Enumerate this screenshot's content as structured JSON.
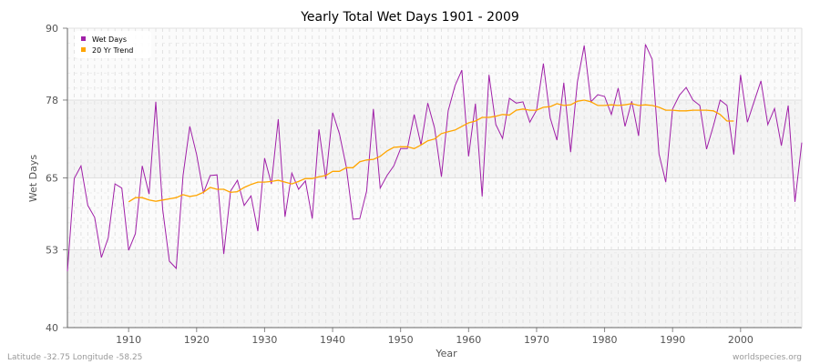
{
  "chart_data": {
    "type": "line",
    "title": "Yearly Total Wet Days 1901 - 2009",
    "xlabel": "Year",
    "ylabel": "Wet Days",
    "xlim": [
      1901,
      2009
    ],
    "ylim": [
      40,
      90
    ],
    "yticks": [
      40,
      53,
      65,
      78,
      90
    ],
    "xticks": [
      1910,
      1920,
      1930,
      1940,
      1950,
      1960,
      1970,
      1980,
      1990,
      2000
    ],
    "legend_position": "top-left",
    "series": [
      {
        "name": "Wet Days",
        "color": "#a020a8",
        "x_start": 1901,
        "values": [
          49.4,
          64.9,
          67,
          60.4,
          58.4,
          51.7,
          55,
          64,
          63.3,
          52.9,
          55.7,
          67,
          62.3,
          77.7,
          59.8,
          51.1,
          49.9,
          65.4,
          73.6,
          68.9,
          62.5,
          65.4,
          65.5,
          52.3,
          62.8,
          64.6,
          60.4,
          62,
          56.1,
          68.3,
          64,
          74.8,
          58.5,
          65.8,
          63.1,
          64.5,
          58.2,
          73.1,
          64.8,
          75.9,
          72.4,
          66.9,
          58.1,
          58.2,
          62.8,
          76.5,
          63.3,
          65.4,
          67,
          69.9,
          69.9,
          75.6,
          70.5,
          77.5,
          73.3,
          65.2,
          76.2,
          80.4,
          83,
          68.6,
          77.4,
          61.9,
          82.2,
          73.9,
          71.6,
          78.3,
          77.5,
          77.7,
          74.3,
          76.3,
          84.1,
          75,
          71.3,
          80.9,
          69.3,
          81,
          87.1,
          77.7,
          78.9,
          78.6,
          75.6,
          80,
          73.6,
          77.8,
          72,
          87.3,
          84.8,
          69,
          64.3,
          76.5,
          78.8,
          80.1,
          78,
          77.1,
          69.8,
          73.7,
          78,
          77.1,
          68.9,
          82.2,
          74.3,
          77.8,
          81.2,
          73.9,
          76.6,
          70.4,
          77.1,
          61,
          70.9
        ]
      },
      {
        "name": "20 Yr Trend",
        "color": "#ffa500",
        "x_start": 1910,
        "values": [
          61,
          61.7,
          61.7,
          61.3,
          61.1,
          61.3,
          61.5,
          61.7,
          62.2,
          61.9,
          62.1,
          62.6,
          63.4,
          63.1,
          63.1,
          62.6,
          62.7,
          63.4,
          63.9,
          64.3,
          64.3,
          64.4,
          64.6,
          64.3,
          64,
          64.4,
          64.9,
          64.9,
          65.2,
          65.4,
          66.1,
          66.1,
          66.7,
          66.7,
          67.7,
          68,
          68.1,
          68.6,
          69.5,
          70.1,
          70.2,
          70.2,
          69.9,
          70.5,
          71.2,
          71.5,
          72.4,
          72.7,
          73,
          73.6,
          74.2,
          74.5,
          75.1,
          75.1,
          75.3,
          75.6,
          75.5,
          76.3,
          76.5,
          76.3,
          76.3,
          76.8,
          76.9,
          77.4,
          77.1,
          77.2,
          77.8,
          78,
          77.7,
          77.1,
          77.1,
          77.2,
          77.1,
          77.2,
          77.4,
          77.1,
          77.2,
          77.1,
          76.8,
          76.3,
          76.3,
          76.2,
          76.2,
          76.3,
          76.3,
          76.3,
          76.2,
          75.6,
          74.5,
          74.5
        ]
      }
    ]
  },
  "footer": {
    "location": "Latitude -32.75 Longitude -58.25",
    "source": "worldspecies.org"
  }
}
